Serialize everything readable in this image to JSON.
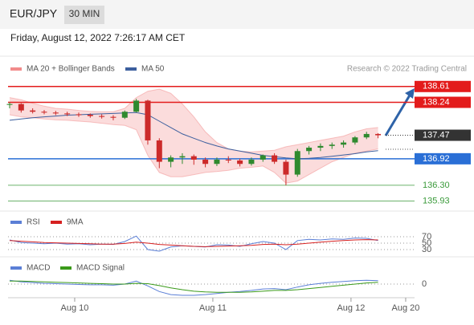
{
  "header": {
    "symbol": "EUR/JPY",
    "interval": "30 MIN",
    "datetime": "Friday, August 12, 2022 7:26:17 AM CET"
  },
  "chart_data": [
    {
      "type": "candlestick",
      "credit": "Research © 2022 Trading Central",
      "x": [
        0,
        1,
        2,
        3,
        4,
        5,
        6,
        7,
        8,
        9,
        10,
        11,
        12,
        13,
        14,
        15,
        16,
        17,
        18,
        19,
        20,
        21,
        22,
        23,
        24,
        25,
        26,
        27,
        28,
        29,
        30,
        31,
        32
      ],
      "xlim": [
        0,
        35.17
      ],
      "xticks": [
        {
          "value": 5.65,
          "label": "Aug 10"
        },
        {
          "value": 17.65,
          "label": "Aug 11"
        },
        {
          "value": 29.65,
          "label": "Aug 12"
        },
        {
          "value": 34.4,
          "label": "Aug 20"
        }
      ],
      "ylim": [
        135.66,
        138.85
      ],
      "up_color": "#2f8a2f",
      "down_color": "#cc2a2a",
      "open": [
        138.18,
        138.2,
        138.05,
        138.02,
        138.0,
        137.98,
        137.96,
        137.95,
        137.92,
        137.9,
        137.88,
        138.02,
        138.28,
        137.35,
        136.85,
        136.95,
        136.98,
        136.9,
        136.8,
        136.9,
        136.88,
        136.8,
        136.9,
        137.0,
        136.85,
        136.55,
        137.1,
        137.18,
        137.22,
        137.25,
        137.3,
        137.42,
        137.5
      ],
      "high": [
        138.24,
        138.22,
        138.1,
        138.06,
        138.04,
        138.02,
        138.0,
        137.98,
        137.96,
        137.94,
        138.05,
        138.32,
        138.3,
        137.4,
        137.0,
        137.05,
        137.02,
        136.95,
        136.95,
        136.98,
        136.92,
        136.95,
        137.02,
        137.05,
        136.9,
        137.15,
        137.22,
        137.28,
        137.3,
        137.35,
        137.45,
        137.55,
        137.52
      ],
      "low": [
        138.1,
        138.0,
        137.98,
        137.96,
        137.94,
        137.92,
        137.9,
        137.88,
        137.86,
        137.82,
        137.85,
        138.0,
        137.25,
        136.7,
        136.72,
        136.8,
        136.78,
        136.72,
        136.75,
        136.82,
        136.74,
        136.76,
        136.85,
        136.8,
        136.3,
        136.5,
        137.02,
        137.1,
        137.15,
        137.18,
        137.25,
        137.38,
        137.4
      ],
      "close": [
        138.2,
        138.05,
        138.02,
        138.0,
        137.98,
        137.96,
        137.95,
        137.92,
        137.9,
        137.88,
        138.02,
        138.28,
        137.35,
        136.85,
        136.95,
        136.98,
        136.9,
        136.8,
        136.9,
        136.88,
        136.8,
        136.9,
        137.0,
        136.85,
        136.55,
        137.1,
        137.18,
        137.22,
        137.25,
        137.3,
        137.42,
        137.5,
        137.47
      ],
      "series": [
        {
          "name": "MA 20 + Bollinger Bands",
          "color": "#f28b8b",
          "upper": [
            138.35,
            138.3,
            138.22,
            138.15,
            138.1,
            138.08,
            138.05,
            138.03,
            138.02,
            138.02,
            138.1,
            138.35,
            138.5,
            138.55,
            138.45,
            138.2,
            137.9,
            137.55,
            137.3,
            137.15,
            137.1,
            137.08,
            137.1,
            137.12,
            137.2,
            137.25,
            137.3,
            137.35,
            137.4,
            137.45,
            137.55,
            137.62,
            137.65
          ],
          "lower": [
            137.95,
            137.9,
            137.88,
            137.85,
            137.83,
            137.82,
            137.8,
            137.78,
            137.75,
            137.72,
            137.7,
            137.6,
            137.0,
            136.6,
            136.5,
            136.5,
            136.55,
            136.6,
            136.62,
            136.65,
            136.7,
            136.72,
            136.75,
            136.6,
            136.35,
            136.4,
            136.55,
            136.7,
            136.85,
            136.95,
            137.05,
            137.1,
            137.15
          ]
        },
        {
          "name": "MA 50",
          "color": "#3c5f9e",
          "values": [
            137.82,
            137.85,
            137.88,
            137.9,
            137.92,
            137.94,
            137.95,
            137.96,
            137.97,
            137.98,
            137.99,
            138.0,
            137.95,
            137.8,
            137.65,
            137.5,
            137.4,
            137.3,
            137.22,
            137.15,
            137.1,
            137.05,
            137.0,
            136.97,
            136.94,
            136.92,
            136.93,
            136.95,
            136.98,
            137.01,
            137.04,
            137.08,
            137.11
          ]
        }
      ],
      "levels": [
        {
          "value": 138.61,
          "label": "138.61",
          "color": "#e31b1b",
          "box": true,
          "line": "solid"
        },
        {
          "value": 138.24,
          "label": "138.24",
          "color": "#e31b1b",
          "box": true,
          "line": "solid"
        },
        {
          "value": 137.47,
          "label": "137.47",
          "color": "#333333",
          "box": true,
          "line": "dotted"
        },
        {
          "value": 136.92,
          "label": "136.92",
          "color": "#2a6fd6",
          "box": true,
          "line": "solid"
        },
        {
          "value": 136.3,
          "label": "136.30",
          "color": "#3a9a3a",
          "box": false,
          "line": "solid"
        },
        {
          "value": 135.93,
          "label": "135.93",
          "color": "#3a9a3a",
          "box": false,
          "line": "solid"
        }
      ]
    },
    {
      "type": "line",
      "ylim": [
        10,
        90
      ],
      "yticks": [
        70,
        50,
        30
      ],
      "series": [
        {
          "name": "RSI",
          "color": "#5b7fd6",
          "values": [
            60,
            52,
            50,
            48,
            50,
            47,
            48,
            45,
            47,
            46,
            55,
            72,
            30,
            25,
            38,
            42,
            40,
            38,
            45,
            44,
            40,
            48,
            55,
            50,
            30,
            58,
            62,
            60,
            63,
            62,
            66,
            65,
            58
          ]
        },
        {
          "name": "9MA",
          "color": "#d62020",
          "values": [
            58,
            56,
            54,
            52,
            51,
            50,
            49,
            48,
            47,
            47,
            49,
            53,
            50,
            46,
            44,
            42,
            40,
            39,
            40,
            41,
            42,
            43,
            46,
            47,
            45,
            47,
            50,
            53,
            56,
            58,
            60,
            61,
            60
          ]
        }
      ]
    },
    {
      "type": "line",
      "ylim": [
        -0.45,
        0.3
      ],
      "yticks": [
        0
      ],
      "series": [
        {
          "name": "MACD",
          "color": "#5b7fd6",
          "values": [
            0.1,
            0.06,
            0.04,
            0.02,
            0.01,
            0.0,
            -0.01,
            -0.02,
            -0.02,
            -0.03,
            0.0,
            0.08,
            -0.05,
            -0.2,
            -0.28,
            -0.3,
            -0.3,
            -0.28,
            -0.25,
            -0.22,
            -0.2,
            -0.17,
            -0.13,
            -0.12,
            -0.15,
            -0.08,
            -0.02,
            0.02,
            0.05,
            0.07,
            0.09,
            0.1,
            0.09
          ]
        },
        {
          "name": "MACD Signal",
          "color": "#3a9a1a",
          "values": [
            0.08,
            0.08,
            0.07,
            0.06,
            0.05,
            0.04,
            0.03,
            0.02,
            0.01,
            0.0,
            0.0,
            0.02,
            0.01,
            -0.04,
            -0.1,
            -0.15,
            -0.19,
            -0.21,
            -0.22,
            -0.22,
            -0.22,
            -0.21,
            -0.19,
            -0.17,
            -0.17,
            -0.15,
            -0.12,
            -0.09,
            -0.06,
            -0.03,
            0.0,
            0.03,
            0.05
          ]
        }
      ]
    }
  ]
}
